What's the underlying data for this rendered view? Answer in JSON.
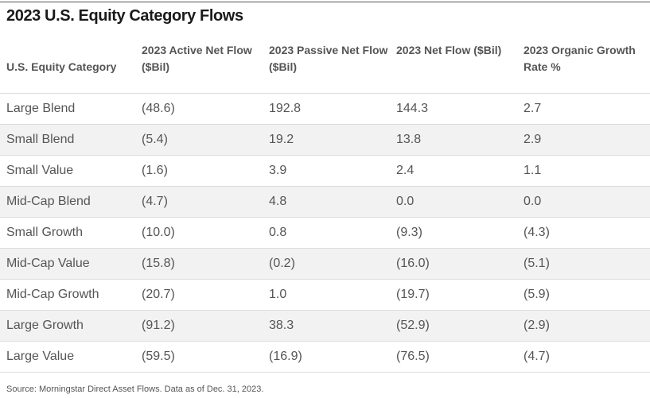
{
  "title": "2023 U.S. Equity Category Flows",
  "columns": [
    "U.S. Equity Category",
    "2023 Active Net Flow ($Bil)",
    "2023 Passive Net Flow ($Bil)",
    "2023 Net Flow ($Bil)",
    "2023 Organic Growth Rate %"
  ],
  "rows": [
    [
      "Large Blend",
      "(48.6)",
      "192.8",
      "144.3",
      "2.7"
    ],
    [
      "Small Blend",
      "(5.4)",
      "19.2",
      "13.8",
      "2.9"
    ],
    [
      "Small Value",
      "(1.6)",
      "3.9",
      "2.4",
      "1.1"
    ],
    [
      "Mid-Cap Blend",
      "(4.7)",
      "4.8",
      "0.0",
      "0.0"
    ],
    [
      "Small Growth",
      "(10.0)",
      "0.8",
      "(9.3)",
      "(4.3)"
    ],
    [
      "Mid-Cap Value",
      "(15.8)",
      "(0.2)",
      "(16.0)",
      "(5.1)"
    ],
    [
      "Mid-Cap Growth",
      "(20.7)",
      "1.0",
      "(19.7)",
      "(5.9)"
    ],
    [
      "Large Growth",
      "(91.2)",
      "38.3",
      "(52.9)",
      "(2.9)"
    ],
    [
      "Large Value",
      "(59.5)",
      "(16.9)",
      "(76.5)",
      "(4.7)"
    ]
  ],
  "source": "Source: Morningstar Direct Asset Flows. Data as of Dec. 31, 2023.",
  "chart_data": {
    "type": "table",
    "title": "2023 U.S. Equity Category Flows",
    "columns": [
      "U.S. Equity Category",
      "2023 Active Net Flow ($Bil)",
      "2023 Passive Net Flow ($Bil)",
      "2023 Net Flow ($Bil)",
      "2023 Organic Growth Rate %"
    ],
    "categories": [
      "Large Blend",
      "Small Blend",
      "Small Value",
      "Mid-Cap Blend",
      "Small Growth",
      "Mid-Cap Value",
      "Mid-Cap Growth",
      "Large Growth",
      "Large Value"
    ],
    "series": [
      {
        "name": "2023 Active Net Flow ($Bil)",
        "values": [
          -48.6,
          -5.4,
          -1.6,
          -4.7,
          -10.0,
          -15.8,
          -20.7,
          -91.2,
          -59.5
        ]
      },
      {
        "name": "2023 Passive Net Flow ($Bil)",
        "values": [
          192.8,
          19.2,
          3.9,
          4.8,
          0.8,
          -0.2,
          1.0,
          38.3,
          -16.9
        ]
      },
      {
        "name": "2023 Net Flow ($Bil)",
        "values": [
          144.3,
          13.8,
          2.4,
          0.0,
          -9.3,
          -16.0,
          -19.7,
          -52.9,
          -76.5
        ]
      },
      {
        "name": "2023 Organic Growth Rate %",
        "values": [
          2.7,
          2.9,
          1.1,
          0.0,
          -4.3,
          -5.1,
          -5.9,
          -2.9,
          -4.7
        ]
      }
    ]
  }
}
